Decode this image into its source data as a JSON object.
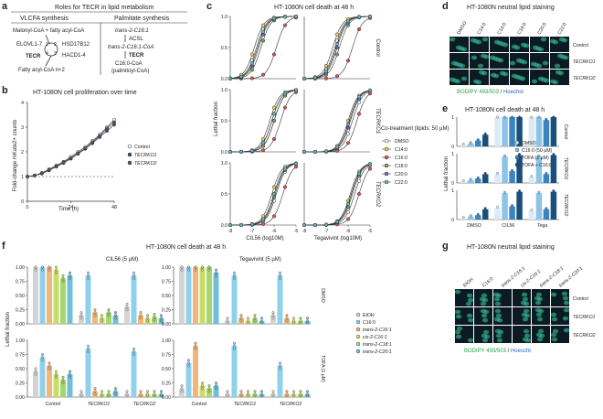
{
  "panels": {
    "a": {
      "letter": "a",
      "title": "Roles for TECR in lipid metabolism",
      "left_header": "VLCFA synthesis",
      "right_header": "Palmitate synthesis",
      "left": {
        "substrates": "Malonyl-CoA + fatty acyl-CoA",
        "elovl": "ELOVL1-7",
        "hsd": "HSD17B12",
        "hacd": "HACD1-4",
        "tecr": "TECR",
        "product": "Fatty acyl-CoA n+2",
        "steps": [
          "1",
          "2",
          "3",
          "4"
        ]
      },
      "right": {
        "substrate": "trans-2-C16:1",
        "acsl": "ACSL",
        "intermediate": "trans-2-C16:1-CoA",
        "tecr": "TECR",
        "product": "C16:0-CoA",
        "product_note": "(palmitoyl-CoA)"
      }
    },
    "b": {
      "letter": "b",
      "title": "HT-1080N cell proliferation over time",
      "ylabel": "Fold-change mKate2+ counts",
      "xlabel": "Time (h)",
      "legend": [
        "Control",
        "TECRKO1",
        "TECRKO2"
      ]
    },
    "c": {
      "letter": "c",
      "title": "HT-1080N cell death at 48 h",
      "ylabel": "Lethal fraction",
      "xlabel_left": "CIL56 (log10M)",
      "xlabel_right": "Tegavivint (log10M)",
      "row_labels": [
        "Control",
        "TECRKO1",
        "TECRKO2"
      ],
      "legend_title": "Co-treatment (lipids: 50 µM)",
      "legend": [
        "DMSO",
        "C14:0",
        "C16:0",
        "C18:0",
        "C20:0",
        "C22:0"
      ]
    },
    "d": {
      "letter": "d",
      "title": "HT-1080N neutral lipid staining",
      "col_labels": [
        "DMSO",
        "C14:0",
        "C16:0",
        "C18:0",
        "C20:0",
        "C22:0"
      ],
      "row_labels": [
        "Control",
        "TECRKO1",
        "TECRKO2"
      ],
      "stain_a": "BODIPY 493/503",
      "stain_sep": " / ",
      "stain_b": "Hoechst"
    },
    "e": {
      "letter": "e",
      "title": "HT-1080N cell death at 48 h",
      "ylabel": "Lethal fraction",
      "categories": [
        "DMSO",
        "CIL56",
        "Tega"
      ],
      "row_labels": [
        "Control",
        "TECRKO1",
        "TECRKO2"
      ],
      "legend": [
        "DMSO",
        "C16:0 (50 µM)",
        "TOFA (1 µM)",
        "TOFA + C16:0"
      ]
    },
    "f": {
      "letter": "f",
      "title": "HT-1080N cell death at 48 h",
      "sub_left": "CIL56 (5 µM)",
      "sub_right": "Tegavivint (5 µM)",
      "ylabel": "Lethal fraction",
      "row_labels": [
        "DMSO",
        "TOFA (1 µM)"
      ],
      "groups": [
        "Control",
        "TECRKO1",
        "TECRKO2"
      ],
      "legend": [
        "EtOH",
        "C16:0",
        "trans-2-C16:1",
        "cis-2-C16:1",
        "trans-2-C18:1",
        "trans-2-C20:1"
      ]
    },
    "g": {
      "letter": "g",
      "title": "HT-1080N neutral lipid staining",
      "col_labels": [
        "EtOH",
        "C16:0",
        "trans-2-C16:1",
        "cis-2-C16:1",
        "trans-2-C18:1",
        "trans-2-C20:1"
      ],
      "row_labels": [
        "Control",
        "TECRKO1",
        "TECRKO2"
      ],
      "stain_a": "BODIPY 493/503",
      "stain_sep": " / ",
      "stain_b": "Hoescht"
    }
  },
  "axes": {
    "b_y": [
      "0",
      "1",
      "2",
      "3",
      "4"
    ],
    "b_x": [
      "0",
      "24",
      "48"
    ],
    "c_y": [
      "0.0",
      "0.5",
      "1.0"
    ],
    "c_x": [
      "-8",
      "-7",
      "-6",
      "-5"
    ],
    "e_y": [
      "0",
      "1"
    ],
    "f_y": [
      "0.00",
      "0.25",
      "0.50",
      "0.75",
      "1.00"
    ]
  },
  "colors": {
    "DMSO": "#ffffff",
    "C14:0": "#e8d34a",
    "C16:0": "#d9534f",
    "C18:0": "#6fa66a",
    "C20:0": "#8a5fb0",
    "C22:0": "#5fb8c9",
    "e_DMSO": "#dde9f4",
    "e_C16": "#8cc4e8",
    "e_TOFA": "#3a84bf",
    "e_TOFA_C16": "#1a4e7c",
    "f_EtOH": "#d4d4d4",
    "f_C16": "#8fd0ea",
    "f_t16": "#f0b67a",
    "f_c16": "#c9dc6a",
    "f_t18": "#a6d66f",
    "f_t20": "#6fbfd6",
    "micro_bg": "#0c1a24",
    "micro_green": "#2fd36a",
    "micro_blue": "#3c6dd6"
  },
  "chart_data": [
    {
      "type": "line",
      "panel": "b",
      "x": [
        0,
        4,
        8,
        12,
        16,
        20,
        24,
        28,
        32,
        36,
        40,
        44,
        48
      ],
      "series": [
        {
          "name": "Control",
          "values": [
            1.0,
            1.05,
            1.15,
            1.3,
            1.45,
            1.6,
            1.8,
            2.0,
            2.2,
            2.45,
            2.7,
            3.0,
            3.3
          ]
        },
        {
          "name": "TECRKO1",
          "values": [
            1.0,
            1.04,
            1.12,
            1.25,
            1.4,
            1.55,
            1.72,
            1.92,
            2.12,
            2.35,
            2.6,
            2.85,
            3.1
          ]
        },
        {
          "name": "TECRKO2",
          "values": [
            1.0,
            1.04,
            1.13,
            1.27,
            1.42,
            1.58,
            1.75,
            1.95,
            2.15,
            2.4,
            2.65,
            2.95,
            3.2
          ]
        }
      ],
      "xlabel": "Time (h)",
      "ylabel": "Fold-change mKate2+ counts",
      "ylim": [
        0,
        4
      ],
      "xlim": [
        0,
        48
      ]
    },
    {
      "type": "line",
      "panel": "c",
      "x": [
        -8,
        -7.5,
        -7,
        -6.5,
        -6,
        -5.5,
        -5
      ],
      "ylim": [
        0,
        1
      ],
      "series_names": [
        "DMSO",
        "C14:0",
        "C16:0",
        "C18:0",
        "C20:0",
        "C22:0"
      ],
      "ec50": {
        "Control_CIL56": [
          -6.8,
          -6.9,
          -5.9,
          -6.6,
          -6.7,
          -6.75
        ],
        "Control_Tega": [
          -6.6,
          -6.7,
          -5.8,
          -6.4,
          -6.5,
          -6.55
        ],
        "KO1_CIL56": [
          -6.0,
          -6.2,
          -5.7,
          -6.0,
          -6.1,
          -6.1
        ],
        "KO1_Tega": [
          -5.8,
          -6.0,
          -5.6,
          -5.9,
          -5.9,
          -5.95
        ],
        "KO2_CIL56": [
          -5.9,
          -6.1,
          -5.6,
          -5.95,
          -6.0,
          -6.0
        ],
        "KO2_Tega": [
          -5.7,
          -5.9,
          -5.5,
          -5.8,
          -5.85,
          -5.85
        ]
      }
    },
    {
      "type": "bar",
      "panel": "e",
      "categories": [
        "DMSO",
        "CIL56",
        "Tega"
      ],
      "series_names": [
        "DMSO",
        "C16:0 (50 µM)",
        "TOFA (1 µM)",
        "TOFA + C16:0"
      ],
      "rows": {
        "Control": [
          [
            0.05,
            0.1,
            0.2,
            0.4
          ],
          [
            1.0,
            1.0,
            1.0,
            1.0
          ],
          [
            1.0,
            1.0,
            0.9,
            1.0
          ]
        ],
        "TECRKO1": [
          [
            0.05,
            0.1,
            0.15,
            0.3
          ],
          [
            0.3,
            0.9,
            0.4,
            0.95
          ],
          [
            0.2,
            0.9,
            0.3,
            0.95
          ]
        ],
        "TECRKO2": [
          [
            0.05,
            0.1,
            0.15,
            0.35
          ],
          [
            0.4,
            0.9,
            0.45,
            0.95
          ],
          [
            0.3,
            0.9,
            0.35,
            0.95
          ]
        ]
      },
      "ylim": [
        0,
        1
      ]
    },
    {
      "type": "bar",
      "panel": "f",
      "groups": [
        "Control",
        "TECRKO1",
        "TECRKO2"
      ],
      "series_names": [
        "EtOH",
        "C16:0",
        "trans-2-C16:1",
        "cis-2-C16:1",
        "trans-2-C18:1",
        "trans-2-C20:1"
      ],
      "cil56_dmso": [
        [
          1.0,
          1.0,
          1.0,
          0.95,
          0.8,
          0.85
        ],
        [
          0.15,
          0.85,
          0.2,
          0.1,
          0.2,
          0.15
        ],
        [
          0.3,
          0.85,
          0.15,
          0.1,
          0.12,
          0.1
        ]
      ],
      "tega_dmso": [
        [
          1.0,
          1.0,
          1.0,
          1.0,
          1.0,
          0.9
        ],
        [
          0.05,
          0.85,
          0.1,
          0.05,
          0.1,
          0.05
        ],
        [
          0.15,
          0.85,
          0.1,
          0.05,
          0.05,
          0.05
        ]
      ],
      "cil56_tofa": [
        [
          0.45,
          0.7,
          0.55,
          0.4,
          0.3,
          0.4
        ],
        [
          0.05,
          0.85,
          0.1,
          0.05,
          0.05,
          0.1
        ],
        [
          0.05,
          0.8,
          0.05,
          0.05,
          0.05,
          0.05
        ]
      ],
      "tega_tofa": [
        [
          0.15,
          0.6,
          0.9,
          0.2,
          0.15,
          0.2
        ],
        [
          0.05,
          0.9,
          0.05,
          0.05,
          0.05,
          0.05
        ],
        [
          0.05,
          0.55,
          0.05,
          0.05,
          0.05,
          0.05
        ]
      ],
      "ylim": [
        0,
        1
      ]
    }
  ]
}
